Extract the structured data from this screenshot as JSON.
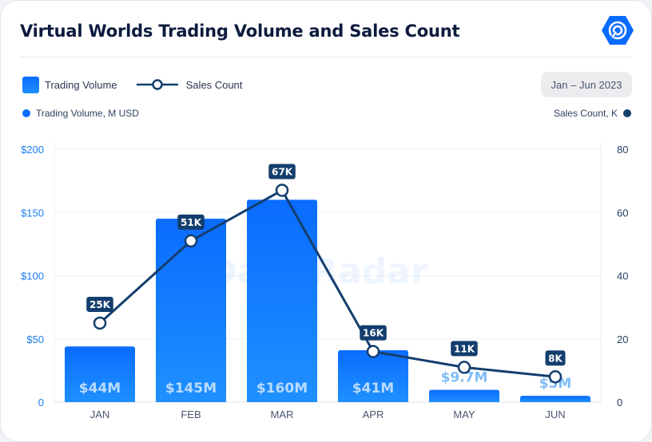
{
  "header": {
    "title": "Virtual Worlds Trading Volume and Sales Count",
    "logo_icon": "dappradar-hexagon-icon"
  },
  "legend": {
    "bar_label": "Trading Volume",
    "line_label": "Sales Count"
  },
  "date_range": "Jan – Jun 2023",
  "axis_titles": {
    "left": "Trading Volume, M USD",
    "right": "Sales Count, K"
  },
  "watermark": "DappRadar",
  "colors": {
    "bar_top": "#0a6cff",
    "bar_bottom": "#1e90ff",
    "line": "#133e6e",
    "left_axis": "#1a7cf0",
    "right_axis": "#2a4066",
    "outside_label": "#7fbcf7",
    "inside_label": "#b9dbff"
  },
  "chart_data": {
    "type": "bar",
    "title": "Virtual Worlds Trading Volume and Sales Count",
    "categories": [
      "JAN",
      "FEB",
      "MAR",
      "APR",
      "MAY",
      "JUN"
    ],
    "series": [
      {
        "name": "Trading Volume",
        "type": "bar",
        "axis": "left",
        "unit": "M USD",
        "values": [
          44,
          145,
          160,
          41,
          9.7,
          5
        ],
        "labels": [
          "$44M",
          "$145M",
          "$160M",
          "$41M",
          "$9.7M",
          "$5M"
        ]
      },
      {
        "name": "Sales Count",
        "type": "line",
        "axis": "right",
        "unit": "K",
        "values": [
          25,
          51,
          67,
          16,
          11,
          8
        ],
        "labels": [
          "25K",
          "51K",
          "67K",
          "16K",
          "11K",
          "8K"
        ]
      }
    ],
    "y_left": {
      "label": "Trading Volume, M USD",
      "ylim": [
        0,
        200
      ],
      "ticks": [
        0,
        50,
        100,
        150,
        200
      ],
      "tick_labels": [
        "0",
        "$50",
        "$100",
        "$150",
        "$200"
      ]
    },
    "y_right": {
      "label": "Sales Count, K",
      "ylim": [
        0,
        80
      ],
      "ticks": [
        0,
        20,
        40,
        60,
        80
      ],
      "tick_labels": [
        "0",
        "20",
        "40",
        "60",
        "80"
      ]
    },
    "grid": true,
    "legend_position": "top-left"
  }
}
